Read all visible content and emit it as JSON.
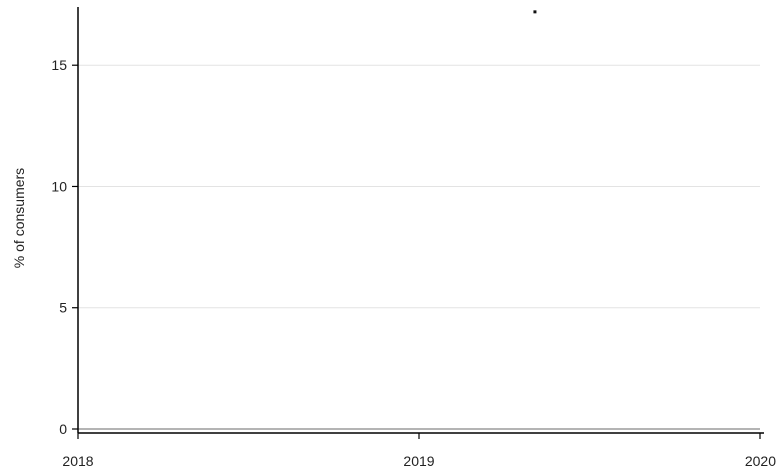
{
  "chart_data": {
    "type": "scatter",
    "title": "",
    "xlabel": "",
    "ylabel": "% of consumers",
    "xlim": [
      2018,
      2020
    ],
    "ylim": [
      0,
      17.4
    ],
    "x_ticks": [
      2018,
      2019,
      2020
    ],
    "y_ticks": [
      0,
      5,
      10,
      15
    ],
    "grid": "horizontal",
    "legend": "none",
    "series": [
      {
        "x": [
          2019.34
        ],
        "y": [
          17.2
        ]
      }
    ],
    "colors": {
      "marker": "#111111",
      "grid": "#e3e3e3",
      "axis": "#000000",
      "baseline": "#b4b4b4"
    }
  }
}
